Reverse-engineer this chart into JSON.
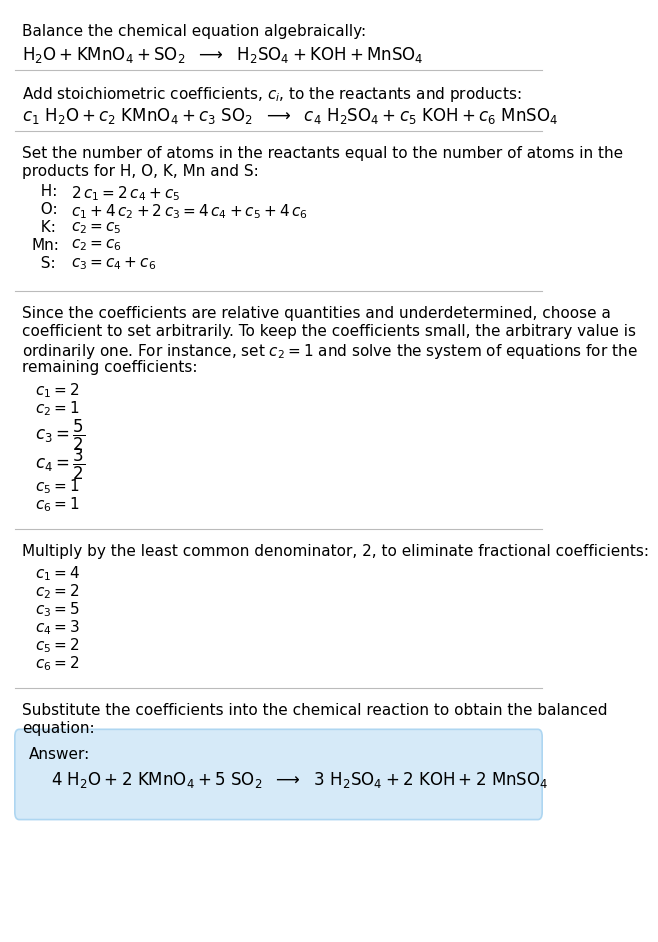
{
  "bg_color": "#ffffff",
  "text_color": "#000000",
  "font_size": 11,
  "section1_title": "Balance the chemical equation algebraically:",
  "section2_title": "Add stoichiometric coefficients, $c_i$, to the reactants and products:",
  "section3_title_1": "Set the number of atoms in the reactants equal to the number of atoms in the",
  "section3_title_2": "products for H, O, K, Mn and S:",
  "section3_lines": [
    [
      "  H:",
      "$2\\,c_1 = 2\\,c_4 + c_5$"
    ],
    [
      "  O:",
      "$c_1 + 4\\,c_2 + 2\\,c_3 = 4\\,c_4 + c_5 + 4\\,c_6$"
    ],
    [
      "  K:",
      "$c_2 = c_5$"
    ],
    [
      "Mn:",
      "$c_2 = c_6$"
    ],
    [
      "  S:",
      "$c_3 = c_4 + c_6$"
    ]
  ],
  "section4_intro": [
    "Since the coefficients are relative quantities and underdetermined, choose a",
    "coefficient to set arbitrarily. To keep the coefficients small, the arbitrary value is",
    "ordinarily one. For instance, set $c_2 = 1$ and solve the system of equations for the",
    "remaining coefficients:"
  ],
  "section4_lines": [
    "$c_1 = 2$",
    "$c_2 = 1$",
    "$c_3 = \\dfrac{5}{2}$",
    "$c_4 = \\dfrac{3}{2}$",
    "$c_5 = 1$",
    "$c_6 = 1$"
  ],
  "section5_title": "Multiply by the least common denominator, 2, to eliminate fractional coefficients:",
  "section5_lines": [
    "$c_1 = 4$",
    "$c_2 = 2$",
    "$c_3 = 5$",
    "$c_4 = 3$",
    "$c_5 = 2$",
    "$c_6 = 2$"
  ],
  "section6_title_1": "Substitute the coefficients into the chemical reaction to obtain the balanced",
  "section6_title_2": "equation:",
  "answer_label": "Answer:",
  "answer_box_color": "#d6eaf8",
  "answer_box_border": "#aed6f1",
  "separator_color": "#bbbbbb"
}
